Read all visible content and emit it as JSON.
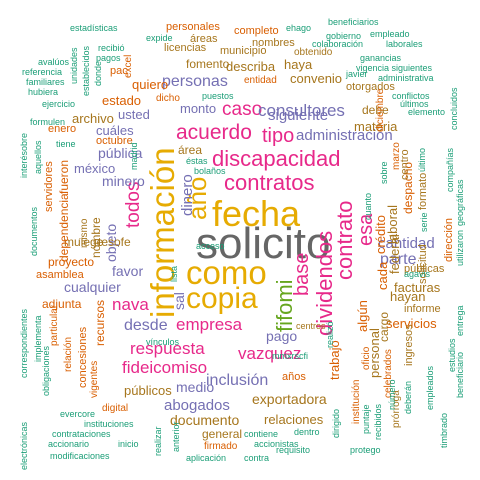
{
  "words": [
    {
      "text": "solicito",
      "c": 7
    },
    {
      "text": "fecha",
      "c": 5
    },
    {
      "text": "información",
      "c": 5
    },
    {
      "text": "como",
      "c": 5
    },
    {
      "text": "copia",
      "c": 5
    },
    {
      "text": "año",
      "c": 5
    },
    {
      "text": "contratos",
      "c": 3
    },
    {
      "text": "discapacidad",
      "c": 3
    },
    {
      "text": "fifomi",
      "c": 4
    },
    {
      "text": "dividendos",
      "c": 3
    },
    {
      "text": "contrato",
      "c": 3
    },
    {
      "text": "base",
      "c": 3
    },
    {
      "text": "acuerdo",
      "c": 3
    },
    {
      "text": "tipo",
      "c": 3
    },
    {
      "text": "caso",
      "c": 3
    },
    {
      "text": "todos",
      "c": 3
    },
    {
      "text": "esa",
      "c": 3
    },
    {
      "text": "empresa",
      "c": 3
    },
    {
      "text": "respuesta",
      "c": 3
    },
    {
      "text": "vazquez",
      "c": 3
    },
    {
      "text": "nava",
      "c": 3
    },
    {
      "text": "fideicomiso",
      "c": 3
    },
    {
      "text": "consultores",
      "c": 2
    },
    {
      "text": "administración",
      "c": 2
    },
    {
      "text": "siguiente",
      "c": 2
    },
    {
      "text": "personas",
      "c": 2
    },
    {
      "text": "dinero",
      "c": 2
    },
    {
      "text": "parte",
      "c": 2
    },
    {
      "text": "cantidad",
      "c": 2
    },
    {
      "text": "desde",
      "c": 2
    },
    {
      "text": "inclusión",
      "c": 2
    },
    {
      "text": "abogados",
      "c": 2
    },
    {
      "text": "pública",
      "c": 2
    },
    {
      "text": "minero",
      "c": 2
    },
    {
      "text": "favor",
      "c": 2
    },
    {
      "text": "cualquier",
      "c": 2
    },
    {
      "text": "objeto",
      "c": 2
    },
    {
      "text": "pago",
      "c": 2
    },
    {
      "text": "medio",
      "c": 2
    },
    {
      "text": "sal",
      "c": 2
    },
    {
      "text": "cuáles",
      "c": 2
    },
    {
      "text": "usted",
      "c": 2
    },
    {
      "text": "monto",
      "c": 2
    },
    {
      "text": "méxico",
      "c": 2
    },
    {
      "text": "exportadora",
      "c": 6
    },
    {
      "text": "documento",
      "c": 6
    },
    {
      "text": "relaciones",
      "c": 6
    },
    {
      "text": "públicos",
      "c": 6
    },
    {
      "text": "servicios",
      "c": 1
    },
    {
      "text": "facturas",
      "c": 6
    },
    {
      "text": "hayan",
      "c": 6
    },
    {
      "text": "trabajo",
      "c": 1
    },
    {
      "text": "personal",
      "c": 6
    },
    {
      "text": "laboral",
      "c": 6
    },
    {
      "text": "federal",
      "c": 6
    },
    {
      "text": "crédito",
      "c": 1
    },
    {
      "text": "cada",
      "c": 1
    },
    {
      "text": "algún",
      "c": 1
    },
    {
      "text": "materia",
      "c": 6
    },
    {
      "text": "estado",
      "c": 1
    },
    {
      "text": "archivo",
      "c": 6
    },
    {
      "text": "quiero",
      "c": 1
    },
    {
      "text": "describa",
      "c": 6
    },
    {
      "text": "convenio",
      "c": 6
    },
    {
      "text": "haya",
      "c": 6
    },
    {
      "text": "fomento",
      "c": 6
    },
    {
      "text": "proyecto",
      "c": 1
    },
    {
      "text": "mulege",
      "c": 6
    },
    {
      "text": "tesofe",
      "c": 6
    },
    {
      "text": "adjunta",
      "c": 1
    },
    {
      "text": "general",
      "c": 6
    },
    {
      "text": "recursos",
      "c": 1
    },
    {
      "text": "dependencia",
      "c": 1
    },
    {
      "text": "fueron",
      "c": 1
    },
    {
      "text": "nombre",
      "c": 6
    },
    {
      "text": "debe",
      "c": 6
    },
    {
      "text": "mismo",
      "c": 6
    },
    {
      "text": "años",
      "c": 1
    },
    {
      "text": "cargo",
      "c": 6
    },
    {
      "text": "despacho",
      "c": 1
    },
    {
      "text": "centro",
      "c": 6
    },
    {
      "text": "ingresos",
      "c": 6
    },
    {
      "text": "informe",
      "c": 6
    },
    {
      "text": "públicas",
      "c": 6
    },
    {
      "text": "área",
      "c": 6
    },
    {
      "text": "enero",
      "c": 1
    },
    {
      "text": "octubre",
      "c": 1
    },
    {
      "text": "asamblea",
      "c": 1
    },
    {
      "text": "particular",
      "c": 1
    },
    {
      "text": "solicitud",
      "c": 6
    },
    {
      "text": "dirección",
      "c": 1
    },
    {
      "text": "nombres",
      "c": 6
    },
    {
      "text": "municipio",
      "c": 6
    },
    {
      "text": "licencias",
      "c": 6
    },
    {
      "text": "áreas",
      "c": 6
    },
    {
      "text": "personales",
      "c": 1
    },
    {
      "text": "completo",
      "c": 1
    },
    {
      "text": "otorgados",
      "c": 6
    },
    {
      "text": "entidad",
      "c": 1
    },
    {
      "text": "dicho",
      "c": 1
    },
    {
      "text": "obtenido",
      "c": 6
    },
    {
      "text": "excel",
      "c": 1
    },
    {
      "text": "pac",
      "c": 1
    },
    {
      "text": "marzo",
      "c": 1
    },
    {
      "text": "formato",
      "c": 6
    },
    {
      "text": "digital",
      "c": 1
    },
    {
      "text": "firmado",
      "c": 1
    },
    {
      "text": "vigentes",
      "c": 1
    },
    {
      "text": "concesiones",
      "c": 1
    },
    {
      "text": "relación",
      "c": 1
    },
    {
      "text": "celebrados",
      "c": 1
    },
    {
      "text": "prórroga",
      "c": 6
    },
    {
      "text": "centros",
      "c": 6
    },
    {
      "text": "estadísticas",
      "c": 0
    },
    {
      "text": "beneficiarios",
      "c": 0
    },
    {
      "text": "empleado",
      "c": 0
    },
    {
      "text": "gobierno",
      "c": 0
    },
    {
      "text": "ehago",
      "c": 0
    },
    {
      "text": "colaboración",
      "c": 0
    },
    {
      "text": "laborales",
      "c": 0
    },
    {
      "text": "ganancias",
      "c": 0
    },
    {
      "text": "vigencia siguientes",
      "c": 0
    },
    {
      "text": "administrativa",
      "c": 0
    },
    {
      "text": "conflictos",
      "c": 0
    },
    {
      "text": "elemento",
      "c": 0
    },
    {
      "text": "concluidos",
      "c": 0
    },
    {
      "text": "avalúos",
      "c": 0
    },
    {
      "text": "referencia",
      "c": 0
    },
    {
      "text": "familiares",
      "c": 0
    },
    {
      "text": "hubiera",
      "c": 0
    },
    {
      "text": "ejercicio",
      "c": 0
    },
    {
      "text": "formulen",
      "c": 0
    },
    {
      "text": "interésobre",
      "c": 0
    },
    {
      "text": "documentos",
      "c": 0
    },
    {
      "text": "correspondientes",
      "c": 0
    },
    {
      "text": "implementa",
      "c": 0
    },
    {
      "text": "obligaciones",
      "c": 0
    },
    {
      "text": "electrónicas",
      "c": 0
    },
    {
      "text": "accionario",
      "c": 0
    },
    {
      "text": "contrataciones",
      "c": 0
    },
    {
      "text": "modificaciones",
      "c": 0
    },
    {
      "text": "evercore",
      "c": 0
    },
    {
      "text": "instituciones",
      "c": 0
    },
    {
      "text": "inicio",
      "c": 0
    },
    {
      "text": "realizar",
      "c": 0
    },
    {
      "text": "anterior",
      "c": 0
    },
    {
      "text": "aplicación",
      "c": 0
    },
    {
      "text": "contra",
      "c": 0
    },
    {
      "text": "requisito",
      "c": 0
    },
    {
      "text": "protego",
      "c": 0
    },
    {
      "text": "accionistas",
      "c": 0
    },
    {
      "text": "contiene",
      "c": 0
    },
    {
      "text": "dentro",
      "c": 0
    },
    {
      "text": "dirigido",
      "c": 0
    },
    {
      "text": "institución",
      "c": 1
    },
    {
      "text": "oficio",
      "c": 1
    },
    {
      "text": "puntaje",
      "c": 0
    },
    {
      "text": "recibidos",
      "c": 0
    },
    {
      "text": "deberán",
      "c": 0
    },
    {
      "text": "empleados",
      "c": 0
    },
    {
      "text": "timbrado",
      "c": 0
    },
    {
      "text": "beneficiario",
      "c": 0
    },
    {
      "text": "estudios",
      "c": 0
    },
    {
      "text": "entrega",
      "c": 0
    },
    {
      "text": "utilizaron",
      "c": 0
    },
    {
      "text": "geográficas",
      "c": 0
    },
    {
      "text": "compañías",
      "c": 0
    },
    {
      "text": "vínculos",
      "c": 0
    },
    {
      "text": "acceso",
      "c": 0
    },
    {
      "text": "lista",
      "c": 0
    },
    {
      "text": "mmxrscfi",
      "c": 0
    },
    {
      "text": "expide",
      "c": 0
    },
    {
      "text": "recibió",
      "c": 0
    },
    {
      "text": "pagos",
      "c": 0
    },
    {
      "text": "unidades",
      "c": 0
    },
    {
      "text": "establecidos",
      "c": 0
    },
    {
      "text": "donde",
      "c": 0
    },
    {
      "text": "puestos",
      "c": 0
    },
    {
      "text": "aquellos",
      "c": 0
    },
    {
      "text": "servidores",
      "c": 1
    },
    {
      "text": "tiene",
      "c": 0
    },
    {
      "text": "madrid",
      "c": 0
    },
    {
      "text": "bolaños",
      "c": 0
    },
    {
      "text": "éstas",
      "c": 0
    },
    {
      "text": "agavis",
      "c": 0
    },
    {
      "text": "serie",
      "c": 0
    },
    {
      "text": "último",
      "c": 0
    },
    {
      "text": "javier",
      "c": 0
    },
    {
      "text": "diciembre",
      "c": 1
    },
    {
      "text": "número",
      "c": 0
    },
    {
      "text": "realizó",
      "c": 0
    },
    {
      "text": "cuanto",
      "c": 0
    },
    {
      "text": "sobre",
      "c": 0
    },
    {
      "text": "últimos",
      "c": 0
    }
  ]
}
